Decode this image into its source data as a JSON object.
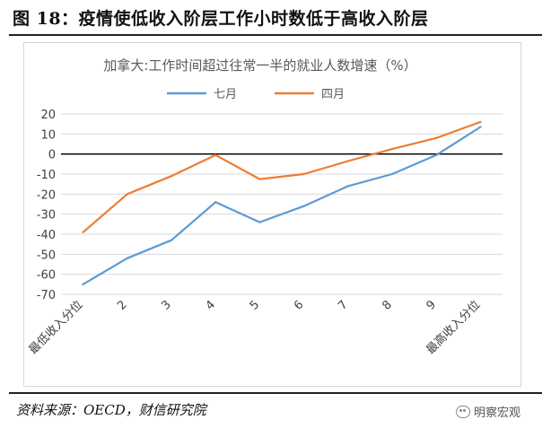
{
  "figure_title": "图 18：疫情使低收入阶层工作小时数低于高收入阶层",
  "source": "资料来源：OECD，财信研究院",
  "watermark": "明察宏观",
  "watermark_icon": "wechat-icon",
  "chart_data": {
    "type": "line",
    "title": "加拿大:工作时间超过往常一半的就业人数增速（%）",
    "categories": [
      "最低收入分位",
      "2",
      "3",
      "4",
      "5",
      "6",
      "7",
      "8",
      "9",
      "最高收入分位"
    ],
    "series": [
      {
        "name": "七月",
        "color": "#5b9bd5",
        "values": [
          -65,
          -52,
          -43,
          -24,
          -34,
          -26,
          -16,
          -10,
          -0.5,
          13.5
        ]
      },
      {
        "name": "四月",
        "color": "#ed7d31",
        "values": [
          -39,
          -20,
          -11,
          -0.5,
          -12.5,
          -10,
          -3.5,
          2.5,
          8,
          16
        ]
      }
    ],
    "ylim": [
      -70,
      20
    ],
    "yticks": [
      20,
      10,
      0,
      -10,
      -20,
      -30,
      -40,
      -50,
      -60,
      -70
    ],
    "xlabel": "",
    "ylabel": "",
    "grid": true,
    "legend": "top-center"
  }
}
